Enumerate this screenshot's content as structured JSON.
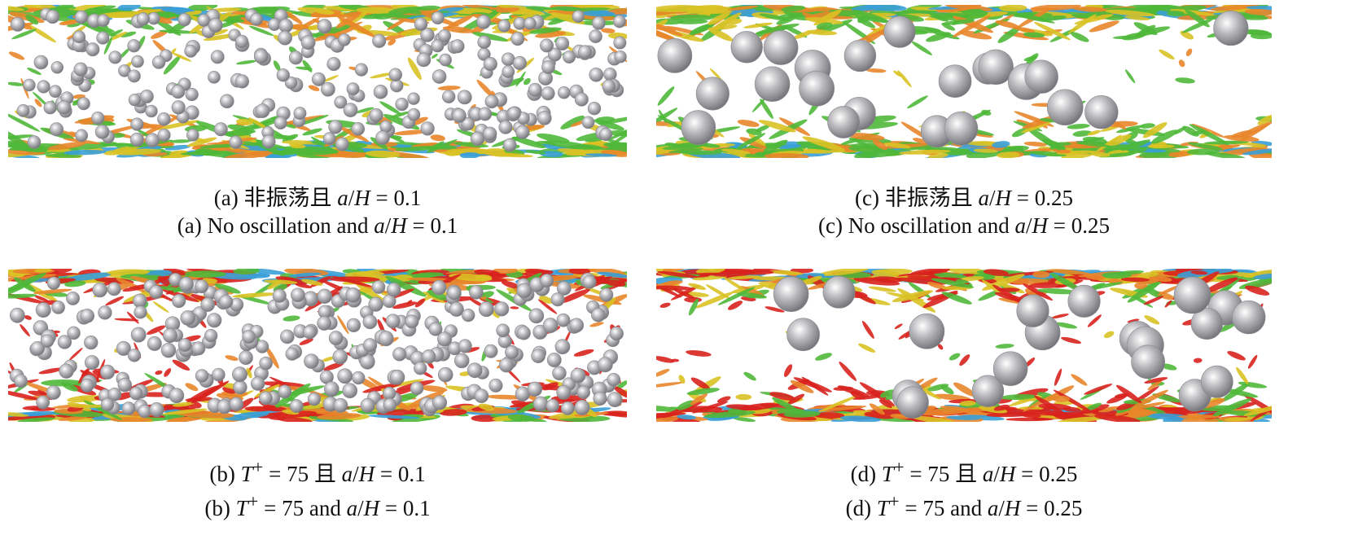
{
  "figure": {
    "panels": [
      {
        "id": "a",
        "caption_cn": {
          "prefix": "(a) 非振荡且 ",
          "var": "a",
          "slash": "/",
          "var2": "H",
          "rest": " = 0.1"
        },
        "caption_en": {
          "prefix": "(a) No oscillation and ",
          "var": "a",
          "slash": "/",
          "var2": "H",
          "rest": " = 0.1"
        }
      },
      {
        "id": "b",
        "caption_cn": {
          "prefix": "(b) ",
          "var": "T",
          "sup": "+",
          "mid": " = 75 且 ",
          "var2": "a",
          "slash": "/",
          "var3": "H",
          "rest": " = 0.1"
        },
        "caption_en": {
          "prefix": "(b) ",
          "var": "T",
          "sup": "+",
          "mid": " = 75 and ",
          "var2": "a",
          "slash": "/",
          "var3": "H",
          "rest": " = 0.1"
        }
      },
      {
        "id": "c",
        "caption_cn": {
          "prefix": "(c) 非振荡且 ",
          "var": "a",
          "slash": "/",
          "var2": "H",
          "rest": " = 0.25"
        },
        "caption_en": {
          "prefix": "(c) No oscillation and ",
          "var": "a",
          "slash": "/",
          "var2": "H",
          "rest": " = 0.25"
        }
      },
      {
        "id": "d",
        "caption_cn": {
          "prefix": "(d) ",
          "var": "T",
          "sup": "+",
          "mid": " = 75 且 ",
          "var2": "a",
          "slash": "/",
          "var3": "H",
          "rest": " = 0.25"
        },
        "caption_en": {
          "prefix": "(d) ",
          "var": "T",
          "sup": "+",
          "mid": " = 75 and ",
          "var2": "a",
          "slash": "/",
          "var3": "H",
          "rest": " = 0.25"
        }
      }
    ]
  },
  "colors": {
    "vortex_green": "#4fb83a",
    "vortex_yellow": "#d9c225",
    "vortex_orange": "#e8862a",
    "vortex_red": "#d8221e",
    "wall_blue": "#3a9fd8",
    "particle_grey": "#b9b9bd"
  }
}
